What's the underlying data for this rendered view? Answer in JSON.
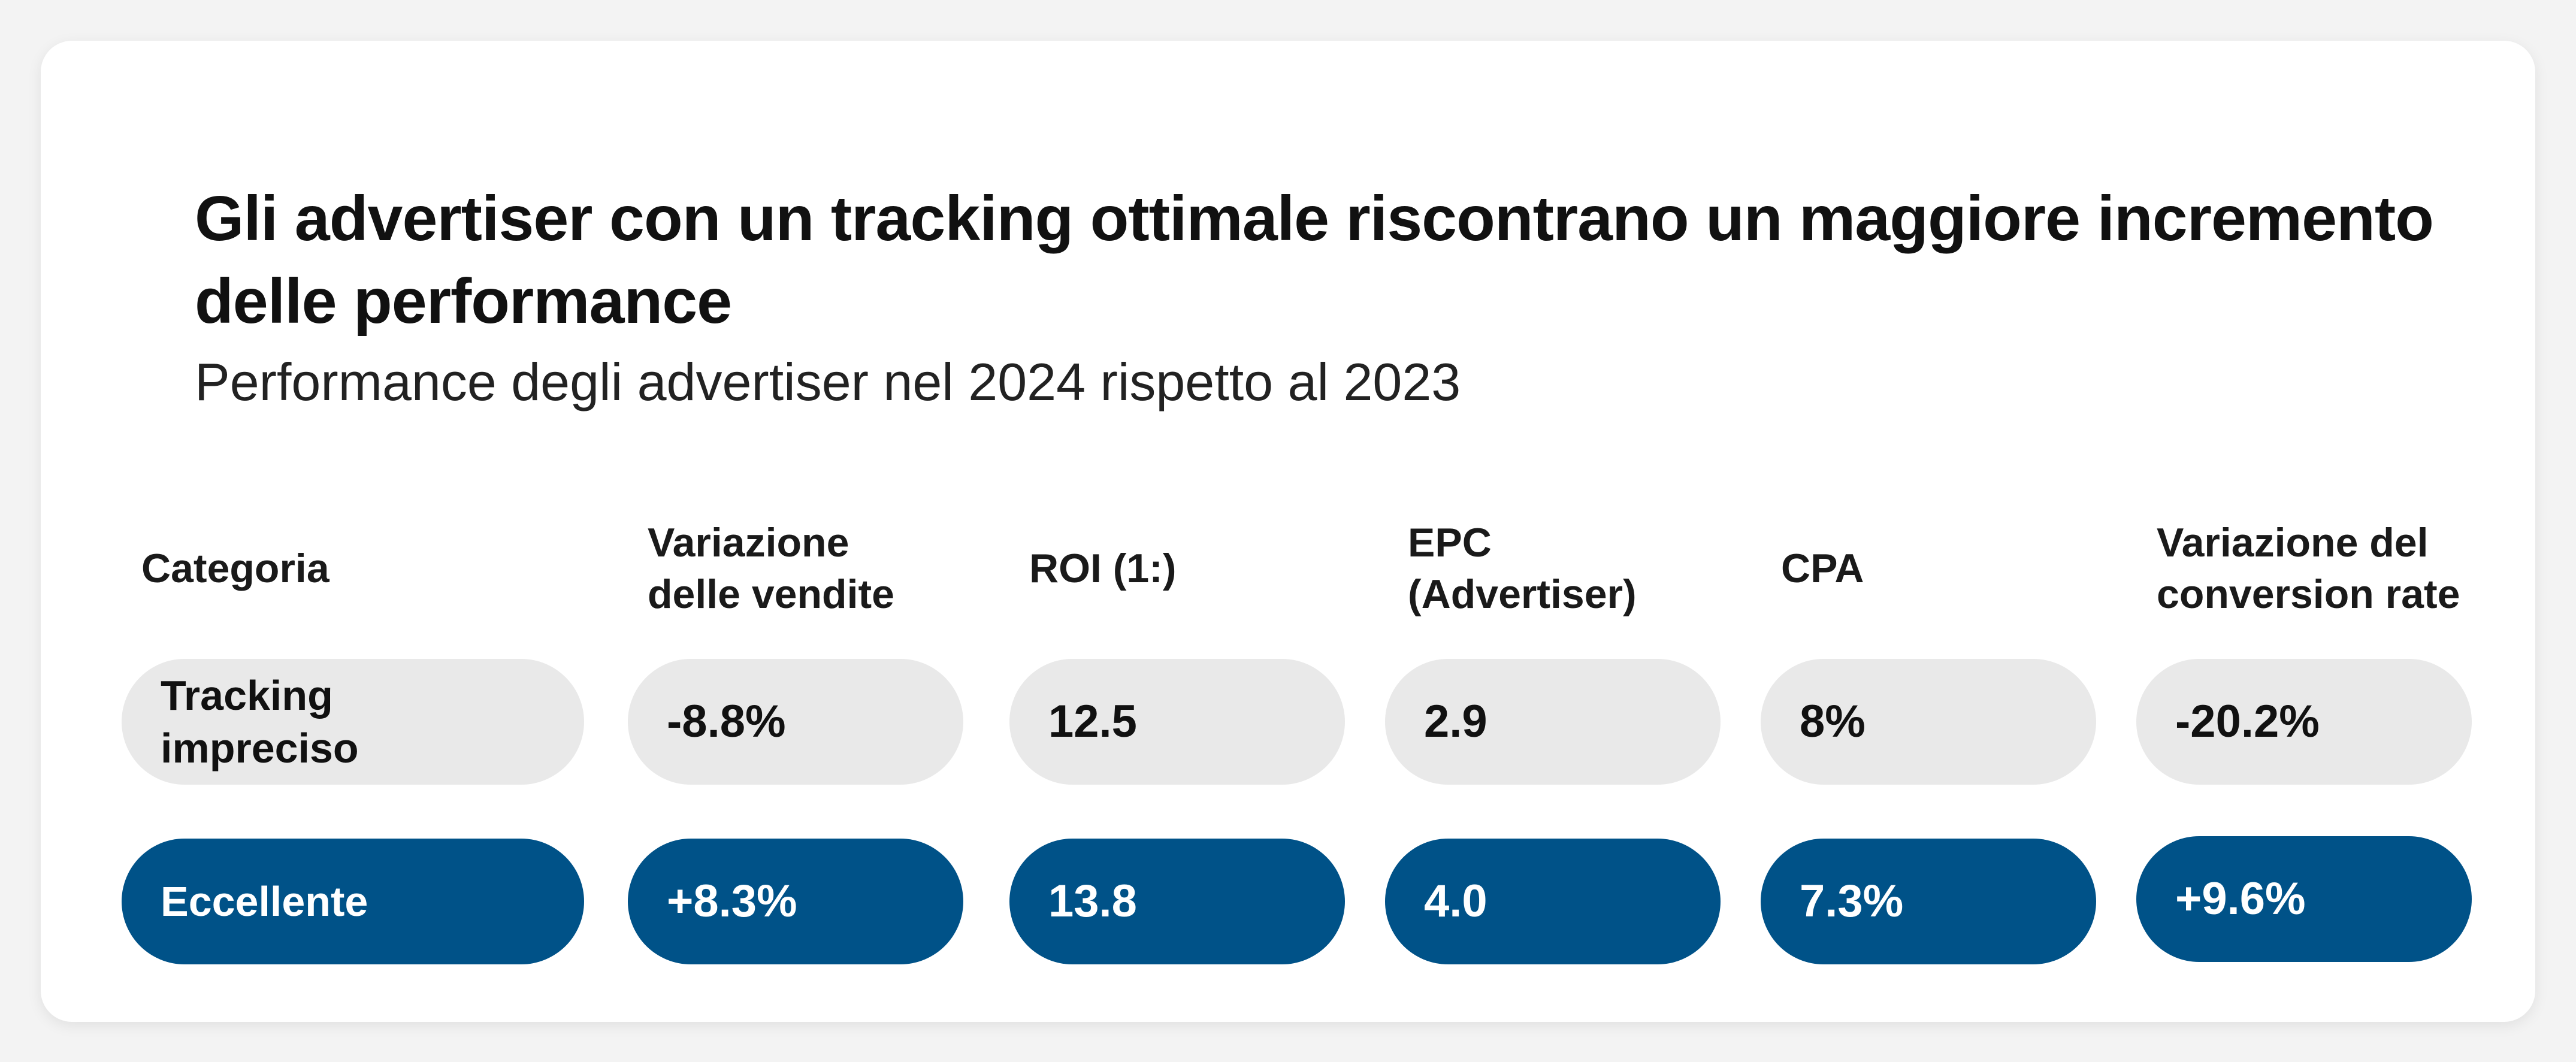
{
  "title": "Gli advertiser con un tracking ottimale riscontrano un maggiore incremento delle performance",
  "subtitle": "Performance degli advertiser nel 2024 rispetto al 2023",
  "colors": {
    "neutral_pill": "#e9e9e9",
    "accent_pill": "#005288",
    "card": "#ffffff"
  },
  "chart_data": {
    "type": "table",
    "columns": [
      "Categoria",
      "Variazione\ndelle vendite",
      "ROI (1:)",
      "EPC\n(Advertiser)",
      "CPA",
      "Variazione del\nconversion rate"
    ],
    "rows": [
      {
        "category": "Tracking\nimpreciso",
        "values": [
          "-8.8%",
          "12.5",
          "2.9",
          "8%",
          "-20.2%"
        ]
      },
      {
        "category": "Eccellente",
        "values": [
          "+8.3%",
          "13.8",
          "4.0",
          "7.3%",
          "+9.6%"
        ]
      }
    ]
  }
}
